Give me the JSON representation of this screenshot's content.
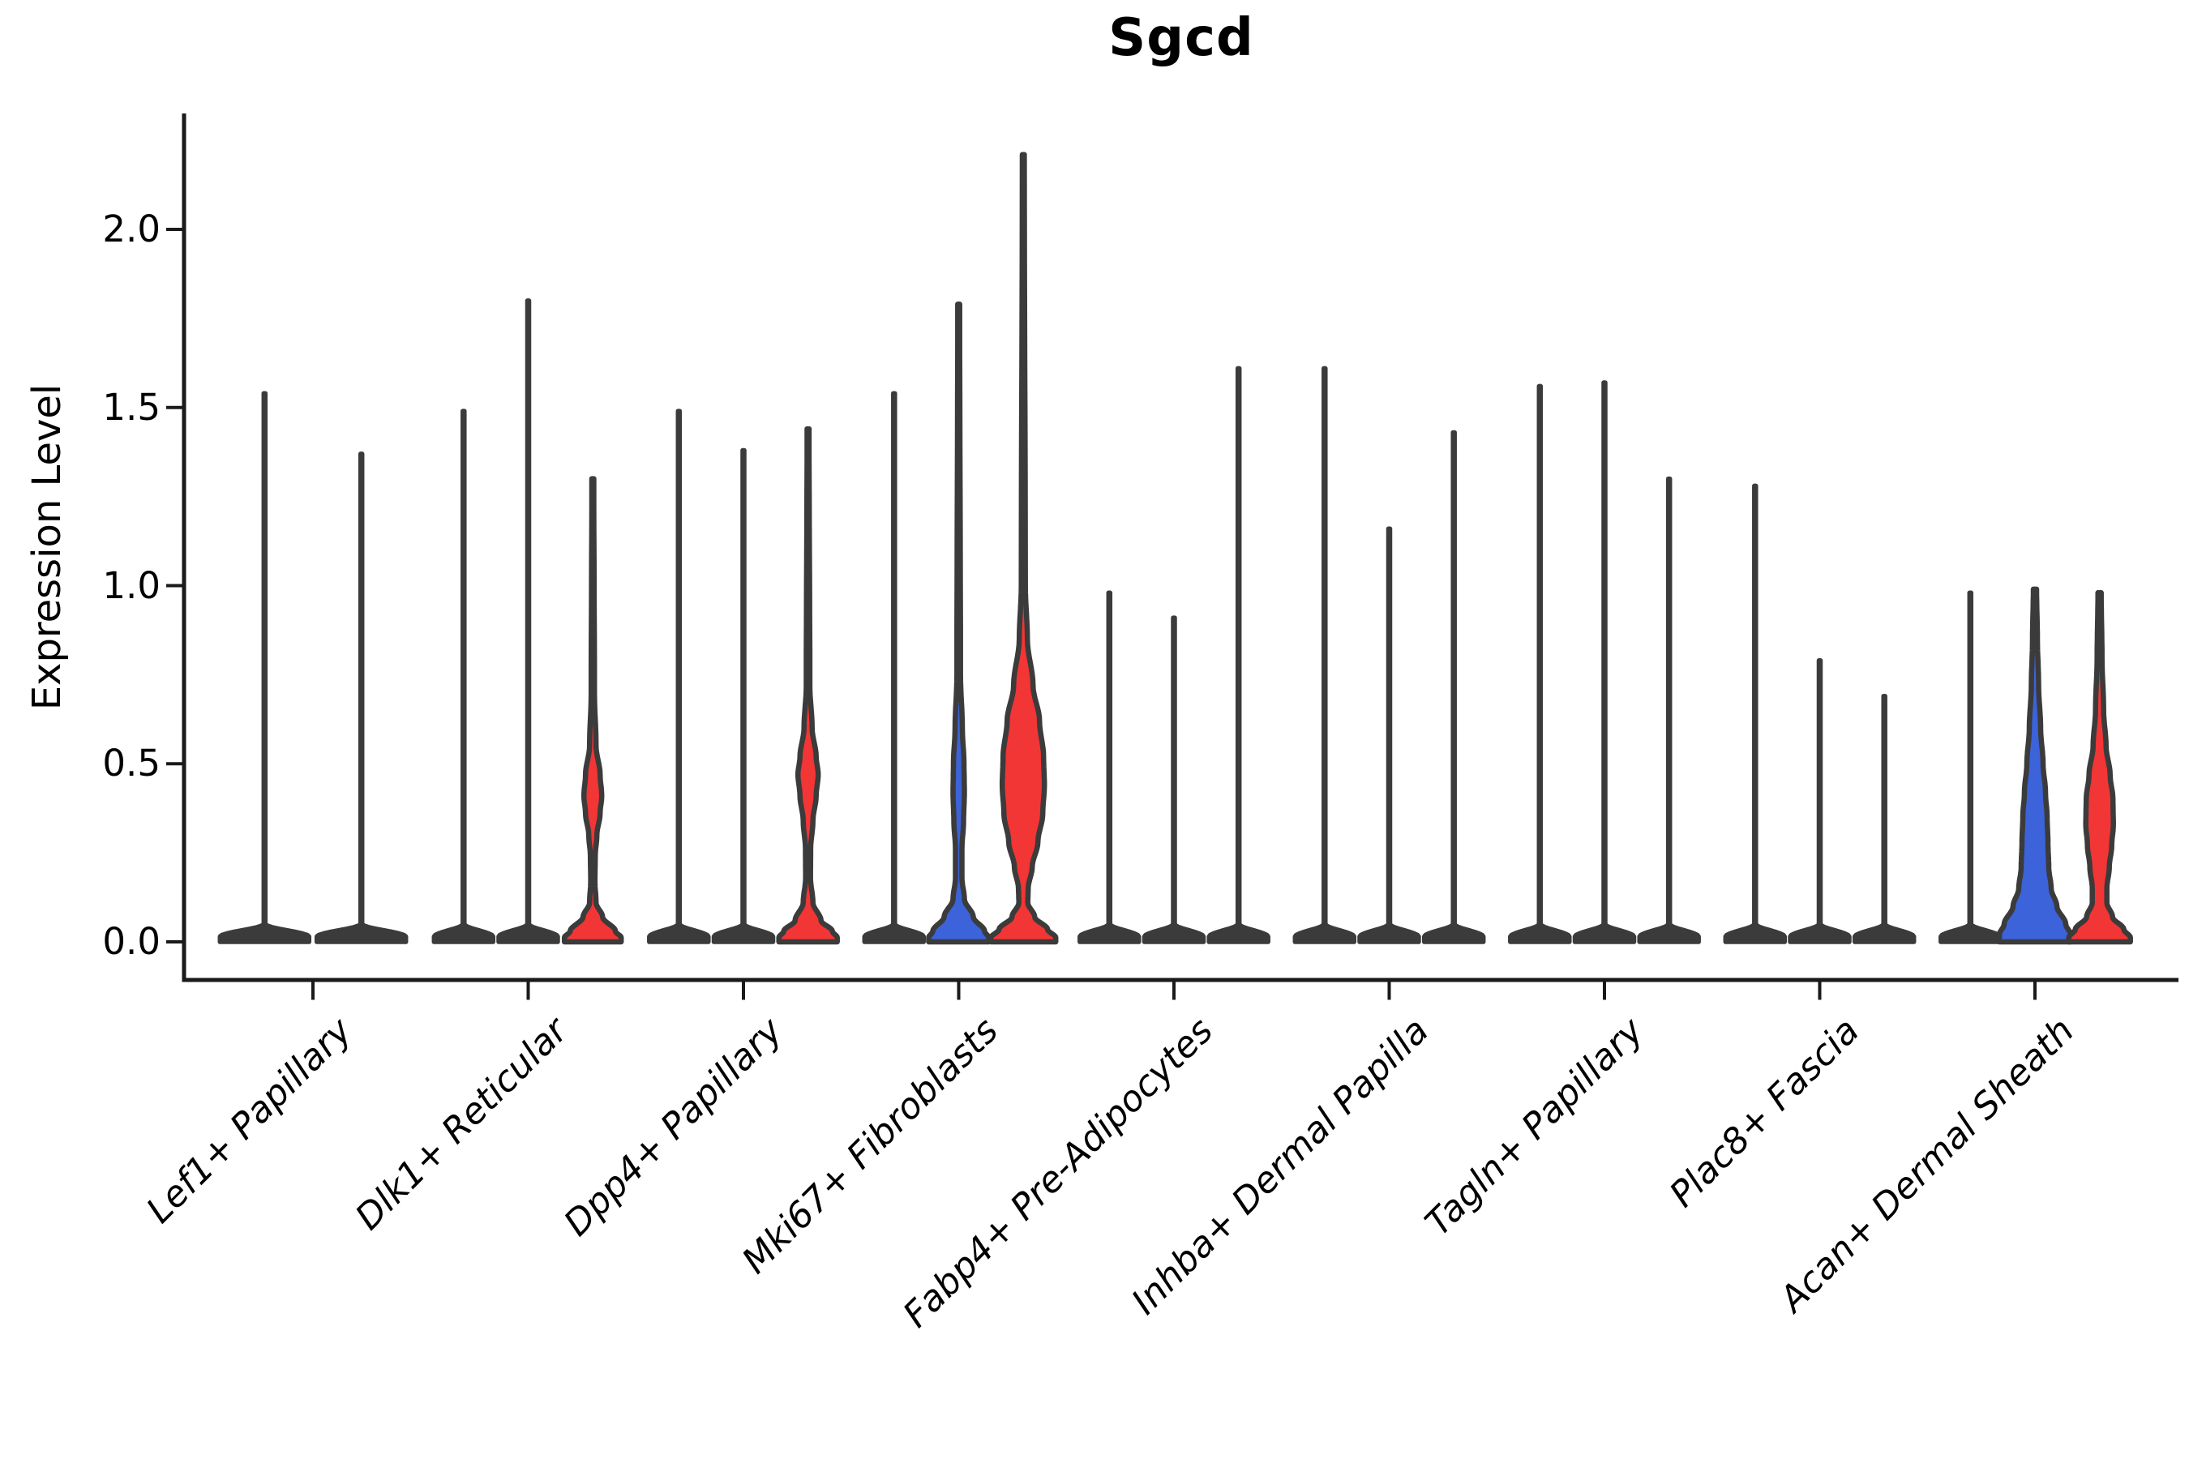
{
  "chart_data": {
    "type": "violin",
    "title": "Sgcd",
    "ylabel": "Expression Level",
    "ylim": [
      0.0,
      2.3
    ],
    "yticks": [
      0.0,
      0.5,
      1.0,
      1.5,
      2.0
    ],
    "ytick_labels": [
      "0.0",
      "0.5",
      "1.0",
      "1.5",
      "2.0"
    ],
    "grid": false,
    "legend": "none",
    "outline_color": "#3B3B3B",
    "axis_color": "#1A1A1A",
    "split_colors": {
      "dark": "#3B3B3B",
      "blue": "#3C63D9",
      "red": "#F23535"
    },
    "categories": [
      {
        "label": "Lef1+ Papillary",
        "violins": [
          {
            "split": 1,
            "style": "spike",
            "color": "dark",
            "max": 1.54
          },
          {
            "split": 2,
            "style": "spike",
            "color": "dark",
            "max": 1.37
          }
        ]
      },
      {
        "label": "Dlk1+ Reticular",
        "violins": [
          {
            "split": 1,
            "style": "spike",
            "color": "dark",
            "max": 1.49
          },
          {
            "split": 2,
            "style": "spike",
            "color": "dark",
            "max": 1.8
          },
          {
            "split": 3,
            "style": "violin",
            "color": "red",
            "max": 1.3,
            "profile": [
              [
                1.3,
                1.2
              ],
              [
                0.7,
                2.0
              ],
              [
                0.55,
                4.0
              ],
              [
                0.47,
                9.0
              ],
              [
                0.41,
                11.0
              ],
              [
                0.36,
                9.0
              ],
              [
                0.3,
                5.0
              ],
              [
                0.24,
                3.0
              ],
              [
                0.17,
                2.6
              ],
              [
                0.11,
                4.0
              ],
              [
                0.07,
                12.0
              ],
              [
                0.03,
                28.0
              ],
              [
                0.012,
                35.0
              ],
              [
                0,
                35.0
              ]
            ]
          }
        ]
      },
      {
        "label": "Dpp4+ Papillary",
        "violins": [
          {
            "split": 1,
            "style": "spike",
            "color": "dark",
            "max": 1.49
          },
          {
            "split": 2,
            "style": "spike",
            "color": "dark",
            "max": 1.38
          },
          {
            "split": 3,
            "style": "violin",
            "color": "red",
            "max": 1.44,
            "profile": [
              [
                1.44,
                1.2
              ],
              [
                0.72,
                2.2
              ],
              [
                0.6,
                5.0
              ],
              [
                0.52,
                10.0
              ],
              [
                0.47,
                12.5
              ],
              [
                0.41,
                10.0
              ],
              [
                0.34,
                6.0
              ],
              [
                0.26,
                3.2
              ],
              [
                0.18,
                3.0
              ],
              [
                0.11,
                6.0
              ],
              [
                0.06,
                16.0
              ],
              [
                0.03,
                30.0
              ],
              [
                0.012,
                36.0
              ],
              [
                0,
                36.0
              ]
            ]
          }
        ]
      },
      {
        "label": "Mki67+ Fibroblasts",
        "violins": [
          {
            "split": 1,
            "style": "spike",
            "color": "dark",
            "max": 1.54
          },
          {
            "split": 2,
            "style": "violin",
            "color": "blue",
            "max": 1.79,
            "profile": [
              [
                1.79,
                1.2
              ],
              [
                0.75,
                2.2
              ],
              [
                0.6,
                4.5
              ],
              [
                0.5,
                6.5
              ],
              [
                0.42,
                7.0
              ],
              [
                0.34,
                6.0
              ],
              [
                0.26,
                4.0
              ],
              [
                0.18,
                4.0
              ],
              [
                0.12,
                7.0
              ],
              [
                0.07,
                18.0
              ],
              [
                0.03,
                32.0
              ],
              [
                0.012,
                37.0
              ],
              [
                0,
                37.0
              ]
            ]
          },
          {
            "split": 3,
            "style": "violin",
            "color": "red",
            "max": 2.21,
            "profile": [
              [
                2.21,
                1.2
              ],
              [
                1.0,
                2.5
              ],
              [
                0.85,
                5.0
              ],
              [
                0.72,
                12.0
              ],
              [
                0.62,
                20.0
              ],
              [
                0.52,
                25.0
              ],
              [
                0.44,
                26.0
              ],
              [
                0.36,
                24.0
              ],
              [
                0.28,
                18.0
              ],
              [
                0.21,
                11.0
              ],
              [
                0.15,
                6.0
              ],
              [
                0.11,
                5.5
              ],
              [
                0.07,
                14.0
              ],
              [
                0.035,
                30.0
              ],
              [
                0.012,
                40.0
              ],
              [
                0,
                40.0
              ]
            ]
          }
        ]
      },
      {
        "label": "Fabp4+ Pre-Adipocytes",
        "violins": [
          {
            "split": 1,
            "style": "spike",
            "color": "dark",
            "max": 0.98
          },
          {
            "split": 2,
            "style": "spike",
            "color": "dark",
            "max": 0.91
          },
          {
            "split": 3,
            "style": "spike",
            "color": "dark",
            "max": 1.61
          }
        ]
      },
      {
        "label": "Inhba+ Dermal Papilla",
        "violins": [
          {
            "split": 1,
            "style": "spike",
            "color": "dark",
            "max": 1.61
          },
          {
            "split": 2,
            "style": "spike",
            "color": "dark",
            "max": 1.16
          },
          {
            "split": 3,
            "style": "spike",
            "color": "dark",
            "max": 1.43
          }
        ]
      },
      {
        "label": "Tagln+ Papillary",
        "violins": [
          {
            "split": 1,
            "style": "spike",
            "color": "dark",
            "max": 1.56
          },
          {
            "split": 2,
            "style": "spike",
            "color": "dark",
            "max": 1.57
          },
          {
            "split": 3,
            "style": "spike",
            "color": "dark",
            "max": 1.3
          }
        ]
      },
      {
        "label": "Plac8+ Fascia",
        "violins": [
          {
            "split": 1,
            "style": "spike",
            "color": "dark",
            "max": 1.28
          },
          {
            "split": 2,
            "style": "spike",
            "color": "dark",
            "max": 0.79
          },
          {
            "split": 3,
            "style": "spike",
            "color": "dark",
            "max": 0.69
          }
        ]
      },
      {
        "label": "Acan+ Dermal Sheath",
        "violins": [
          {
            "split": 1,
            "style": "spike",
            "color": "dark",
            "max": 0.98
          },
          {
            "split": 2,
            "style": "violin",
            "color": "blue",
            "max": 0.99,
            "profile": [
              [
                0.99,
                2.0
              ],
              [
                0.85,
                3.0
              ],
              [
                0.72,
                4.5
              ],
              [
                0.6,
                7.0
              ],
              [
                0.5,
                10.0
              ],
              [
                0.42,
                13.0
              ],
              [
                0.35,
                15.0
              ],
              [
                0.28,
                16.0
              ],
              [
                0.21,
                17.0
              ],
              [
                0.15,
                20.0
              ],
              [
                0.1,
                27.0
              ],
              [
                0.05,
                38.0
              ],
              [
                0.02,
                44.0
              ],
              [
                0,
                44.0
              ]
            ]
          },
          {
            "split": 3,
            "style": "violin",
            "color": "red",
            "max": 0.98,
            "profile": [
              [
                0.98,
                2.0
              ],
              [
                0.8,
                3.0
              ],
              [
                0.65,
                5.0
              ],
              [
                0.55,
                8.0
              ],
              [
                0.47,
                13.0
              ],
              [
                0.4,
                16.5
              ],
              [
                0.33,
                17.0
              ],
              [
                0.27,
                15.0
              ],
              [
                0.21,
                12.0
              ],
              [
                0.15,
                9.0
              ],
              [
                0.11,
                9.0
              ],
              [
                0.07,
                16.0
              ],
              [
                0.035,
                30.0
              ],
              [
                0.012,
                38.0
              ],
              [
                0,
                38.0
              ]
            ]
          }
        ]
      }
    ]
  }
}
